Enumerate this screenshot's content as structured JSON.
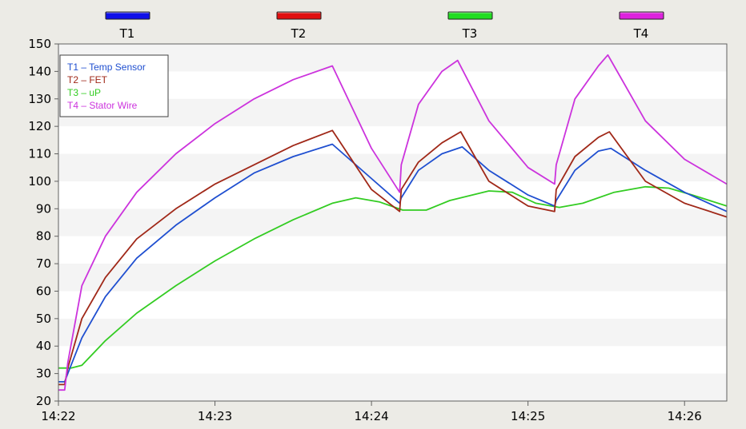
{
  "channels": [
    {
      "label": "T1",
      "color": "#1010e8"
    },
    {
      "label": "T2",
      "color": "#e01010"
    },
    {
      "label": "T3",
      "color": "#22dd22"
    },
    {
      "label": "T4",
      "color": "#dd22dd"
    }
  ],
  "chart_data": {
    "type": "line",
    "title": "",
    "xlabel": "",
    "ylabel": "",
    "x_unit": "minutes",
    "xlim": [
      0,
      4.27
    ],
    "ylim": [
      20,
      150
    ],
    "y_ticks": [
      20,
      30,
      40,
      50,
      60,
      70,
      80,
      90,
      100,
      110,
      120,
      130,
      140,
      150
    ],
    "x_ticks": [
      {
        "value": 0,
        "label": "14:22"
      },
      {
        "value": 1,
        "label": "14:23"
      },
      {
        "value": 2,
        "label": "14:24"
      },
      {
        "value": 3,
        "label": "14:25"
      },
      {
        "value": 4,
        "label": "14:26"
      }
    ],
    "grid": "horizontal bands",
    "legend_position": "top-left",
    "series": [
      {
        "name": "T1 – Temp Sensor",
        "color": "#1f4fd0",
        "x": [
          0,
          0.04,
          0.06,
          0.15,
          0.3,
          0.5,
          0.75,
          1.0,
          1.25,
          1.5,
          1.75,
          2.0,
          2.18,
          2.19,
          2.3,
          2.45,
          2.58,
          2.75,
          3.0,
          3.17,
          3.18,
          3.3,
          3.45,
          3.53,
          3.75,
          4.0,
          4.27
        ],
        "y": [
          27,
          27,
          30,
          43,
          58,
          72,
          84,
          94,
          103,
          109,
          113.5,
          101,
          92,
          94,
          104,
          110,
          112.5,
          104,
          95,
          91,
          93,
          104,
          111,
          112,
          104,
          96,
          89
        ]
      },
      {
        "name": "T2 – FET",
        "color": "#a02818",
        "x": [
          0,
          0.04,
          0.06,
          0.15,
          0.3,
          0.5,
          0.75,
          1.0,
          1.25,
          1.5,
          1.75,
          2.0,
          2.18,
          2.19,
          2.3,
          2.45,
          2.57,
          2.75,
          3.0,
          3.17,
          3.18,
          3.3,
          3.45,
          3.52,
          3.75,
          4.0,
          4.27
        ],
        "y": [
          26,
          26,
          32,
          50,
          65,
          79,
          90,
          99,
          106,
          113,
          118.5,
          97,
          89,
          97,
          107,
          114,
          118,
          100,
          91,
          89,
          97,
          109,
          116,
          118,
          100,
          92,
          87
        ]
      },
      {
        "name": "T3 – uP",
        "color": "#33cc22",
        "x": [
          0,
          0.08,
          0.15,
          0.3,
          0.5,
          0.75,
          1.0,
          1.25,
          1.5,
          1.75,
          1.9,
          2.05,
          2.2,
          2.35,
          2.5,
          2.75,
          2.9,
          3.05,
          3.2,
          3.35,
          3.55,
          3.75,
          3.9,
          4.05,
          4.27
        ],
        "y": [
          32,
          32,
          33,
          42,
          52,
          62,
          71,
          79,
          86,
          92,
          94,
          92.5,
          89.5,
          89.5,
          93,
          96.5,
          96,
          92,
          90.5,
          92,
          96,
          98,
          97.5,
          95,
          91
        ]
      },
      {
        "name": "T4 – Stator Wire",
        "color": "#cc33dd",
        "x": [
          0,
          0.04,
          0.06,
          0.15,
          0.3,
          0.5,
          0.75,
          1.0,
          1.25,
          1.5,
          1.75,
          2.0,
          2.18,
          2.19,
          2.3,
          2.45,
          2.55,
          2.75,
          3.0,
          3.17,
          3.18,
          3.3,
          3.45,
          3.51,
          3.75,
          4.0,
          4.27
        ],
        "y": [
          24,
          24,
          34,
          62,
          80,
          96,
          110,
          121,
          130,
          137,
          142,
          112,
          96,
          106,
          128,
          140,
          144,
          122,
          105,
          99,
          106,
          130,
          142,
          146,
          122,
          108,
          99
        ]
      }
    ]
  }
}
